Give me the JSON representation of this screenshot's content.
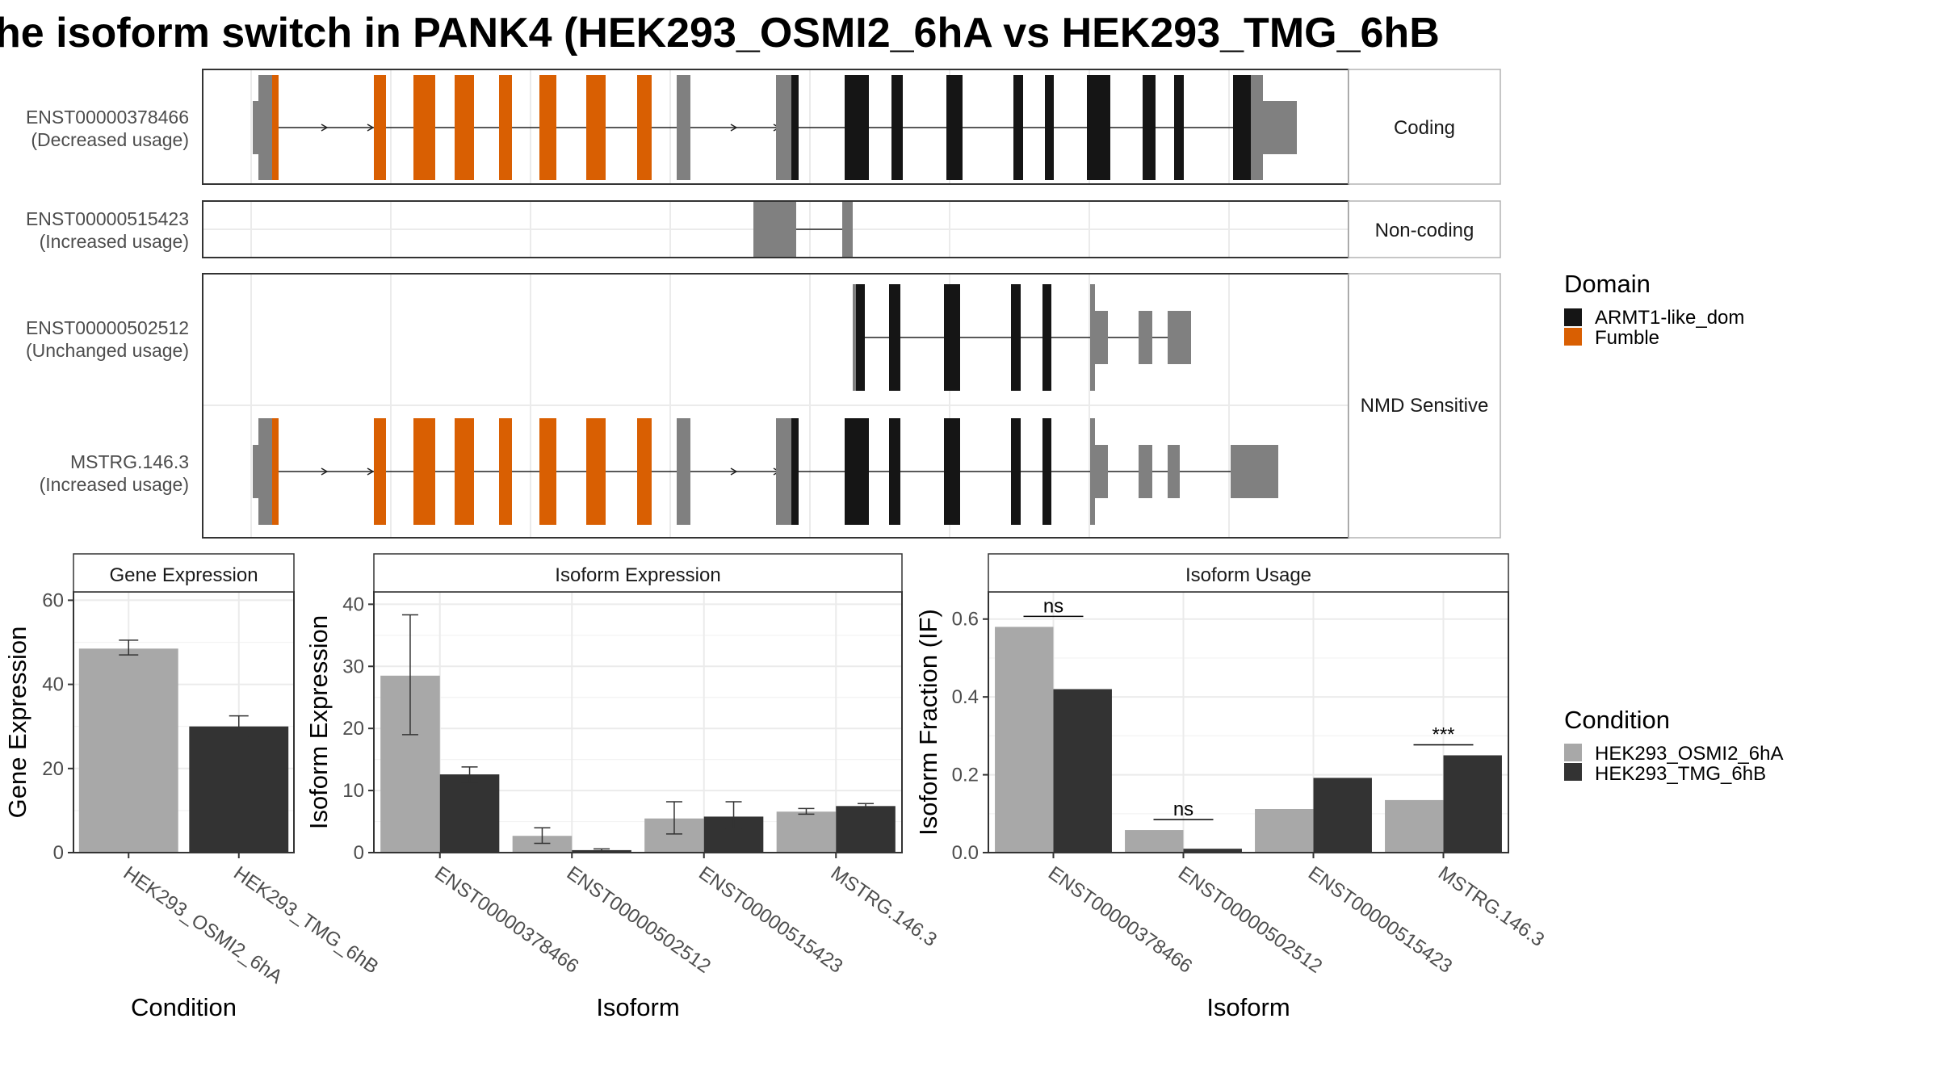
{
  "title": "he isoform switch in PANK4 (HEK293_OSMI2_6hA vs HEK293_TMG_6hB",
  "colors": {
    "domain_armt1": "#151515",
    "domain_fumble": "#d95f02",
    "utr": "#808080",
    "condition_a": "#a8a8a8",
    "condition_b": "#333333",
    "grid": "#ebebeb",
    "panel_border": "#333333",
    "strip_border": "#b3b3b3"
  },
  "isoform_panel": {
    "facets": [
      "Coding",
      "Non-coding",
      "NMD Sensitive"
    ],
    "transcripts": [
      {
        "id": "ENST00000378466",
        "status": "(Decreased usage)",
        "facet": "Coding"
      },
      {
        "id": "ENST00000515423",
        "status": "(Increased usage)",
        "facet": "Non-coding"
      },
      {
        "id": "ENST00000502512",
        "status": "(Unchanged usage)",
        "facet": "NMD Sensitive"
      },
      {
        "id": "MSTRG.146.3",
        "status": "(Increased usage)",
        "facet": "NMD Sensitive"
      }
    ]
  },
  "legends": {
    "domain": {
      "title": "Domain",
      "items": [
        "ARMT1-like_dom",
        "Fumble"
      ]
    },
    "condition": {
      "title": "Condition",
      "items": [
        "HEK293_OSMI2_6hA",
        "HEK293_TMG_6hB"
      ]
    }
  },
  "chart_data": [
    {
      "type": "bar",
      "title": "Gene Expression",
      "xlabel": "Condition",
      "ylabel": "Gene Expression",
      "ylim": [
        0,
        62
      ],
      "yticks": [
        0,
        20,
        40,
        60
      ],
      "categories": [
        "HEK293_OSMI2_6hA",
        "HEK293_TMG_6hB"
      ],
      "values": [
        48.5,
        30
      ],
      "error_low": [
        47,
        27.5
      ],
      "error_high": [
        50.5,
        32.5
      ]
    },
    {
      "type": "bar",
      "title": "Isoform Expression",
      "xlabel": "Isoform",
      "ylabel": "Isoform Expression",
      "ylim": [
        0,
        42
      ],
      "yticks": [
        0,
        10,
        20,
        30,
        40
      ],
      "categories": [
        "ENST00000378466",
        "ENST00000502512",
        "ENST00000515423",
        "MSTRG.146.3"
      ],
      "series": [
        {
          "name": "HEK293_OSMI2_6hA",
          "values": [
            28.5,
            2.7,
            5.5,
            6.6
          ],
          "error_low": [
            19,
            1.5,
            3,
            6.2
          ],
          "error_high": [
            38.3,
            4,
            8.2,
            7.1
          ]
        },
        {
          "name": "HEK293_TMG_6hB",
          "values": [
            12.6,
            0.4,
            5.8,
            7.5
          ],
          "error_low": [
            11.3,
            0.2,
            3.8,
            7.1
          ],
          "error_high": [
            13.8,
            0.6,
            8.2,
            7.9
          ]
        }
      ]
    },
    {
      "type": "bar",
      "title": "Isoform Usage",
      "xlabel": "Isoform",
      "ylabel": "Isoform Fraction (IF)",
      "ylim": [
        0,
        0.67
      ],
      "yticks": [
        0.0,
        0.2,
        0.4,
        0.6
      ],
      "categories": [
        "ENST00000378466",
        "ENST00000502512",
        "ENST00000515423",
        "MSTRG.146.3"
      ],
      "series": [
        {
          "name": "HEK293_OSMI2_6hA",
          "values": [
            0.58,
            0.058,
            0.112,
            0.135
          ]
        },
        {
          "name": "HEK293_TMG_6hB",
          "values": [
            0.42,
            0.01,
            0.192,
            0.25
          ]
        }
      ],
      "significance": [
        "ns",
        "ns",
        "",
        "***"
      ]
    }
  ]
}
